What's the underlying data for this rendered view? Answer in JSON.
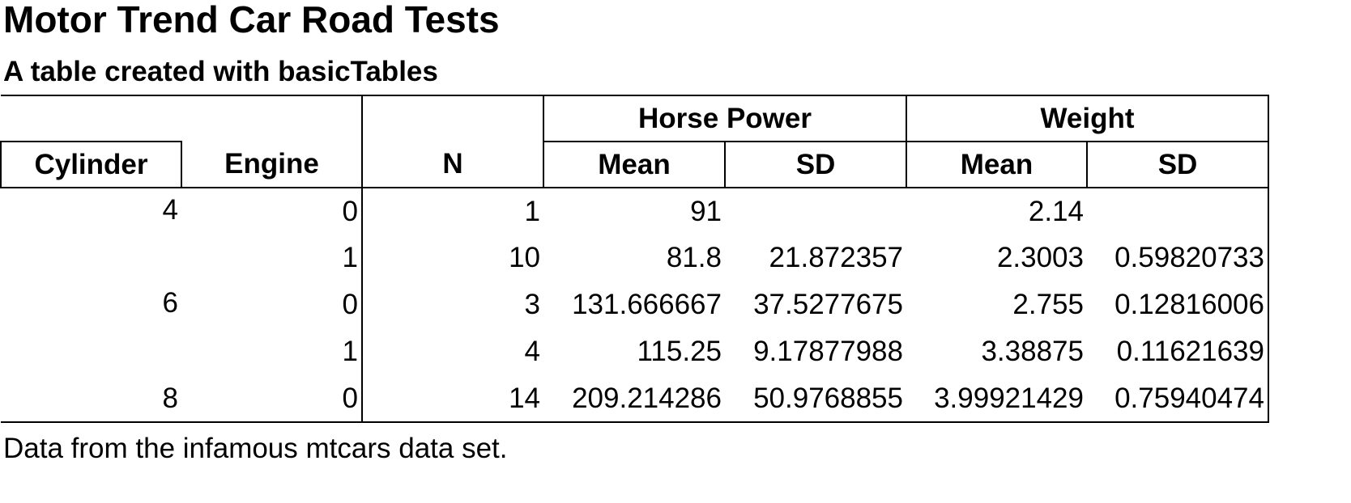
{
  "title": "Motor Trend Car Road Tests",
  "subtitle": "A table created with basicTables",
  "footer": "Data from the infamous mtcars data set.",
  "header": {
    "group_horse_power": "Horse Power",
    "group_weight": "Weight",
    "cylinder": "Cylinder",
    "engine": "Engine",
    "n": "N",
    "hp_mean": "Mean",
    "hp_sd": "SD",
    "wt_mean": "Mean",
    "wt_sd": "SD"
  },
  "rows": [
    {
      "cylinder": "4",
      "engine": "0",
      "n": "1",
      "hp_mean": "91",
      "hp_sd": "",
      "wt_mean": "2.14",
      "wt_sd": ""
    },
    {
      "cylinder": "",
      "engine": "1",
      "n": "10",
      "hp_mean": "81.8",
      "hp_sd": "21.872357",
      "wt_mean": "2.3003",
      "wt_sd": "0.59820733"
    },
    {
      "cylinder": "6",
      "engine": "0",
      "n": "3",
      "hp_mean": "131.666667",
      "hp_sd": "37.5277675",
      "wt_mean": "2.755",
      "wt_sd": "0.12816006"
    },
    {
      "cylinder": "",
      "engine": "1",
      "n": "4",
      "hp_mean": "115.25",
      "hp_sd": "9.17877988",
      "wt_mean": "3.38875",
      "wt_sd": "0.11621639"
    },
    {
      "cylinder": "8",
      "engine": "0",
      "n": "14",
      "hp_mean": "209.214286",
      "hp_sd": "50.9768855",
      "wt_mean": "3.99921429",
      "wt_sd": "0.75940474"
    }
  ]
}
